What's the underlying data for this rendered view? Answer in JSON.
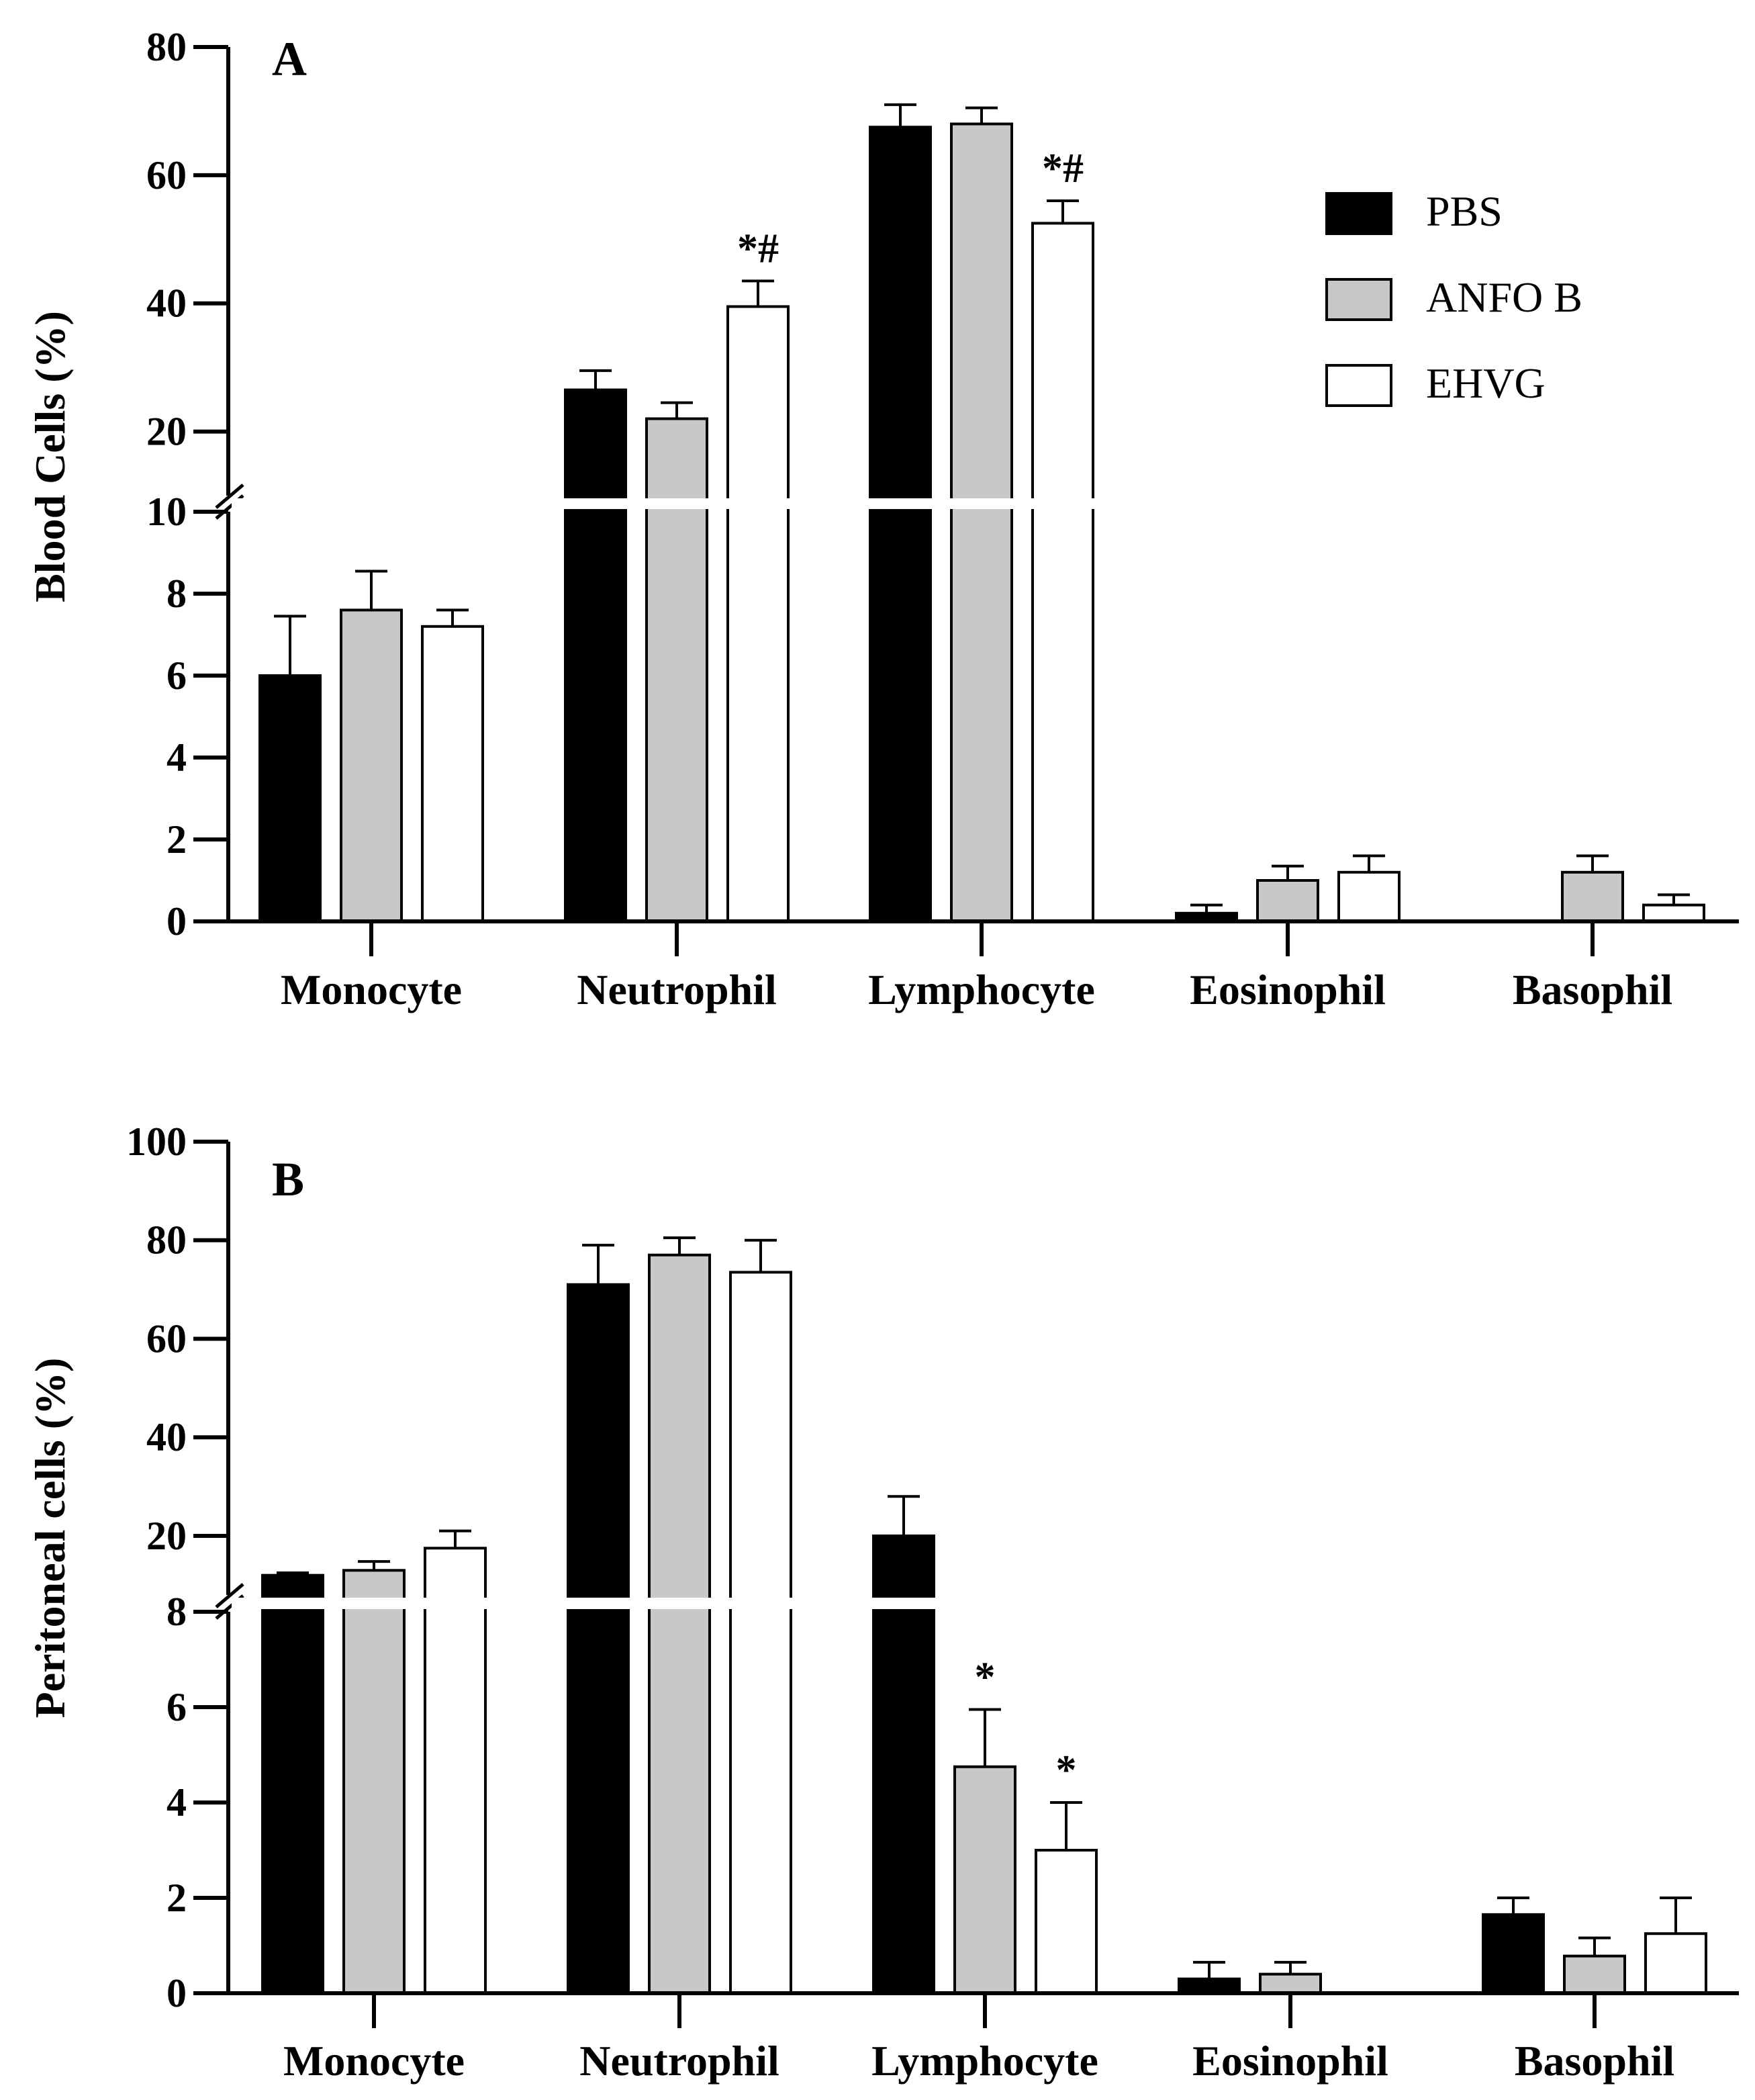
{
  "colors": {
    "PBS": "#000000",
    "ANFO B": "#c8c8c8",
    "EHVG": "#ffffff",
    "axis": "#000000"
  },
  "legend": {
    "entries": [
      "PBS",
      "ANFO B",
      "EHVG"
    ],
    "position": "top-right of panel A"
  },
  "chart_data": [
    {
      "type": "bar",
      "panel": "A",
      "ylabel": "Blood Cells (%)",
      "categories": [
        "Monocyte",
        "Neutrophil",
        "Lymphocyte",
        "Eosinophil",
        "Basophil"
      ],
      "ylim": [
        0,
        80
      ],
      "axis_break": {
        "lower": [
          0,
          10
        ],
        "upper": [
          10,
          80
        ]
      },
      "yticks_lower": [
        "0",
        "2",
        "4",
        "6",
        "8",
        "10"
      ],
      "yticks_upper": [
        "20",
        "40",
        "60",
        "80"
      ],
      "series": [
        {
          "name": "PBS",
          "values": [
            6.0,
            26.5,
            67.5,
            0.2,
            0
          ],
          "errors": [
            1.45,
            3.0,
            3.5,
            0.2,
            0
          ]
        },
        {
          "name": "ANFO B",
          "values": [
            7.6,
            22.0,
            68.0,
            1.0,
            1.2
          ],
          "errors": [
            0.95,
            2.5,
            2.5,
            0.35,
            0.4
          ]
        },
        {
          "name": "EHVG",
          "values": [
            7.2,
            39.5,
            52.5,
            1.2,
            0.4
          ],
          "errors": [
            0.4,
            4.0,
            3.5,
            0.4,
            0.25
          ]
        }
      ],
      "annotations": [
        {
          "category": "Neutrophil",
          "series": "EHVG",
          "text": "*#"
        },
        {
          "category": "Lymphocyte",
          "series": "EHVG",
          "text": "*#"
        }
      ]
    },
    {
      "type": "bar",
      "panel": "B",
      "ylabel": "Peritoneal cells (%)",
      "categories": [
        "Monocyte",
        "Neutrophil",
        "Lymphocyte",
        "Eosinophil",
        "Basophil"
      ],
      "ylim": [
        0,
        100
      ],
      "axis_break": {
        "lower": [
          0,
          8
        ],
        "upper": [
          8,
          100
        ]
      },
      "yticks_lower": [
        "0",
        "2",
        "4",
        "6",
        "8"
      ],
      "yticks_upper": [
        "20",
        "40",
        "60",
        "80",
        "100"
      ],
      "series": [
        {
          "name": "PBS",
          "values": [
            12.0,
            71.0,
            20.0,
            0.3,
            1.65
          ],
          "errors": [
            0.5,
            8.0,
            8.0,
            0.35,
            0.35
          ]
        },
        {
          "name": "ANFO B",
          "values": [
            13.0,
            77.0,
            4.75,
            0.4,
            0.78
          ],
          "errors": [
            1.8,
            3.5,
            1.2,
            0.25,
            0.38
          ]
        },
        {
          "name": "EHVG",
          "values": [
            17.5,
            73.5,
            3.0,
            0,
            1.25
          ],
          "errors": [
            3.5,
            6.5,
            1.0,
            0,
            0.75
          ]
        }
      ],
      "annotations": [
        {
          "category": "Lymphocyte",
          "series": "ANFO B",
          "text": "*"
        },
        {
          "category": "Lymphocyte",
          "series": "EHVG",
          "text": "*"
        }
      ]
    }
  ]
}
